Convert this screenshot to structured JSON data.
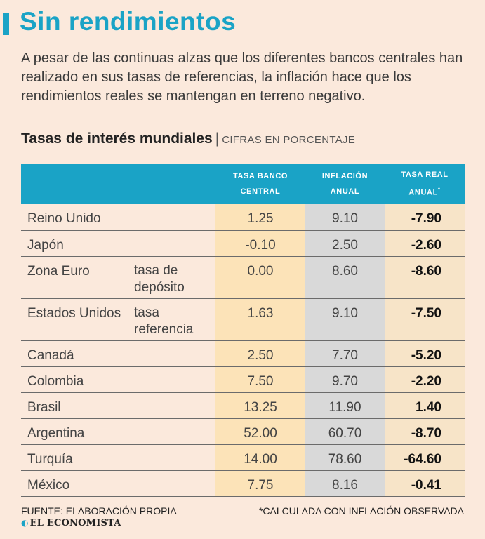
{
  "title": "Sin rendimientos",
  "lead": "A pesar de las continuas alzas que los diferentes bancos centrales han realizado en sus tasas de referencias, la inflación hace que los rendimientos reales se mantengan en terreno negativo.",
  "subtitle": {
    "main": "Tasas de interés mundiales",
    "separator": "|",
    "unit": "CIFRAS EN PORCENTAJE"
  },
  "colors": {
    "accent": "#1aa3c6",
    "bank_col": "#fce3b8",
    "inflation_col": "#d9d9d9",
    "real_col": "#f7e4c8",
    "background": "#fbe9dc"
  },
  "chart_data": {
    "type": "table",
    "title": "Tasas de interés mundiales",
    "unit": "CIFRAS EN PORCENTAJE",
    "columns": [
      {
        "line1": "TASA BANCO",
        "line2": "CENTRAL",
        "star": ""
      },
      {
        "line1": "INFLACIÓN",
        "line2": "ANUAL",
        "star": ""
      },
      {
        "line1": "TASA REAL",
        "line2": "ANUAL",
        "star": "*"
      }
    ],
    "rows": [
      {
        "country": "Reino Unido",
        "note": "",
        "bank_rate": "1.25",
        "inflation": "9.10",
        "real_rate": "-7.90"
      },
      {
        "country": "Japón",
        "note": "",
        "bank_rate": "-0.10",
        "inflation": "2.50",
        "real_rate": "-2.60"
      },
      {
        "country": "Zona Euro",
        "note": "tasa de depósito",
        "bank_rate": "0.00",
        "inflation": "8.60",
        "real_rate": "-8.60"
      },
      {
        "country": "Estados Unidos",
        "note": "tasa referencia",
        "bank_rate": "1.63",
        "inflation": "9.10",
        "real_rate": "-7.50"
      },
      {
        "country": "Canadá",
        "note": "",
        "bank_rate": "2.50",
        "inflation": "7.70",
        "real_rate": "-5.20"
      },
      {
        "country": "Colombia",
        "note": "",
        "bank_rate": "7.50",
        "inflation": "9.70",
        "real_rate": "-2.20"
      },
      {
        "country": "Brasil",
        "note": "",
        "bank_rate": "13.25",
        "inflation": "11.90",
        "real_rate": "1.40"
      },
      {
        "country": "Argentina",
        "note": "",
        "bank_rate": "52.00",
        "inflation": "60.70",
        "real_rate": "-8.70"
      },
      {
        "country": "Turquía",
        "note": "",
        "bank_rate": "14.00",
        "inflation": "78.60",
        "real_rate": "-64.60"
      },
      {
        "country": "México",
        "note": "",
        "bank_rate": "7.75",
        "inflation": "8.16",
        "real_rate": "-0.41"
      }
    ]
  },
  "footer": {
    "source": "FUENTE: ELABORACIÓN PROPIA",
    "footnote": "*CALCULADA CON INFLACIÓN OBSERVADA",
    "logo": "EL ECONOMISTA"
  }
}
